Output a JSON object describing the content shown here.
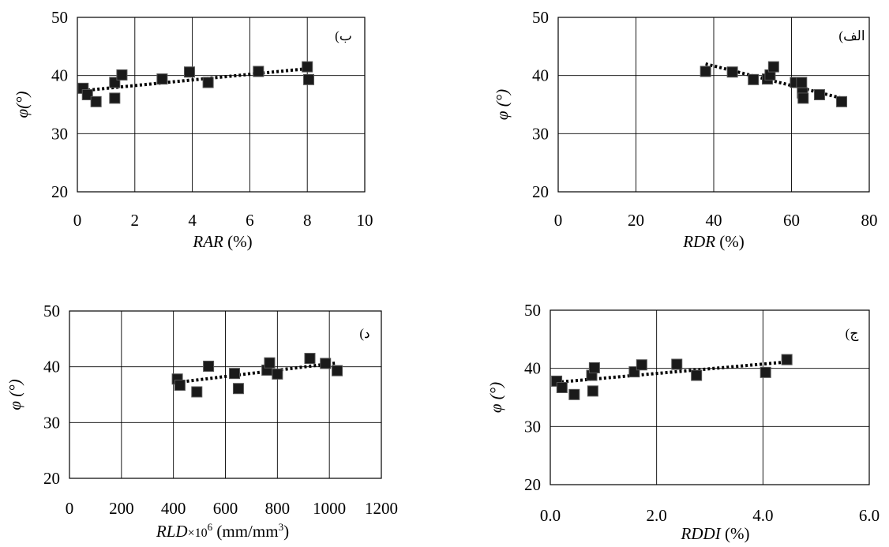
{
  "chart_data": [
    {
      "id": "rar",
      "type": "scatter",
      "panel_label": "ب)",
      "xlabel_var": "RAR",
      "xlabel_rest": " (%)",
      "ylabel": "φ(°)",
      "xlim": [
        0,
        10
      ],
      "ylim": [
        20,
        50
      ],
      "xticks": [
        0,
        2,
        4,
        6,
        8,
        10
      ],
      "xtick_labels": [
        "0",
        "2",
        "4",
        "6",
        "8",
        "10"
      ],
      "yticks": [
        20,
        30,
        40,
        50
      ],
      "ytick_labels": [
        "20",
        "30",
        "40",
        "50"
      ],
      "grid": true,
      "trendline": "dotted linear",
      "x": [
        0.2,
        0.35,
        0.65,
        1.3,
        1.3,
        1.55,
        2.95,
        3.9,
        4.55,
        6.3,
        8.0,
        8.05
      ],
      "y": [
        37.8,
        36.7,
        35.5,
        36.1,
        38.8,
        40.1,
        39.4,
        40.6,
        38.8,
        40.7,
        41.5,
        39.3
      ],
      "trend": [
        [
          0.2,
          37.4
        ],
        [
          8.05,
          41.2
        ]
      ]
    },
    {
      "id": "rdr",
      "type": "scatter",
      "panel_label": "الف)",
      "xlabel_var": "RDR",
      "xlabel_rest": " (%)",
      "ylabel": "φ (°)",
      "xlim": [
        0,
        80
      ],
      "ylim": [
        20,
        50
      ],
      "xticks": [
        0,
        20,
        40,
        60,
        80
      ],
      "xtick_labels": [
        "0",
        "20",
        "40",
        "60",
        "80"
      ],
      "yticks": [
        20,
        30,
        40,
        50
      ],
      "ytick_labels": [
        "20",
        "30",
        "40",
        "50"
      ],
      "grid": true,
      "trendline": "dotted linear",
      "x": [
        37.9,
        44.8,
        50.2,
        53.8,
        54.5,
        55.4,
        61.0,
        62.6,
        62.8,
        63.0,
        67.2,
        72.9
      ],
      "y": [
        40.7,
        40.6,
        39.3,
        39.4,
        40.1,
        41.5,
        38.8,
        38.8,
        37.0,
        36.1,
        36.7,
        35.5
      ],
      "trend": [
        [
          37.9,
          42.0
        ],
        [
          72.9,
          36.1
        ]
      ]
    },
    {
      "id": "rld",
      "type": "scatter",
      "panel_label": "د)",
      "xlabel_var": "RLD",
      "xlabel_mult": "×10",
      "xlabel_exp": "6",
      "xlabel_unit": " (mm/mm",
      "xlabel_unit_exp": "3",
      "xlabel_close": ")",
      "ylabel": "φ (°)",
      "xlim": [
        0,
        1200
      ],
      "ylim": [
        20,
        50
      ],
      "xticks": [
        0,
        200,
        400,
        600,
        800,
        1000,
        1200
      ],
      "xtick_labels": [
        "0",
        "200",
        "400",
        "600",
        "800",
        "1000",
        "1200"
      ],
      "yticks": [
        20,
        30,
        40,
        50
      ],
      "ytick_labels": [
        "20",
        "30",
        "40",
        "50"
      ],
      "grid": true,
      "trendline": "dotted linear",
      "x": [
        415,
        425,
        490,
        535,
        635,
        650,
        760,
        770,
        800,
        925,
        985,
        1030
      ],
      "y": [
        37.8,
        36.7,
        35.5,
        40.1,
        38.8,
        36.1,
        39.4,
        40.7,
        38.7,
        41.5,
        40.6,
        39.3
      ],
      "trend": [
        [
          415,
          37.2
        ],
        [
          1030,
          40.7
        ]
      ]
    },
    {
      "id": "rddi",
      "type": "scatter",
      "panel_label": "ج)",
      "xlabel_var": "RDDI",
      "xlabel_rest": " (%)",
      "ylabel": "φ (°)",
      "xlim": [
        0,
        6
      ],
      "ylim": [
        20,
        50
      ],
      "xticks": [
        0,
        2,
        4,
        6
      ],
      "xtick_labels": [
        "0.0",
        "2.0",
        "4.0",
        "6.0"
      ],
      "yticks": [
        20,
        30,
        40,
        50
      ],
      "ytick_labels": [
        "20",
        "30",
        "40",
        "50"
      ],
      "grid": true,
      "trendline": "dotted linear",
      "x": [
        0.12,
        0.22,
        0.45,
        0.78,
        0.8,
        0.83,
        1.58,
        1.72,
        2.38,
        2.75,
        4.05,
        4.45
      ],
      "y": [
        37.8,
        36.7,
        35.5,
        38.8,
        36.1,
        40.1,
        39.4,
        40.6,
        40.7,
        38.8,
        39.3,
        41.5
      ],
      "trend": [
        [
          0.12,
          37.6
        ],
        [
          4.45,
          41.1
        ]
      ]
    }
  ]
}
